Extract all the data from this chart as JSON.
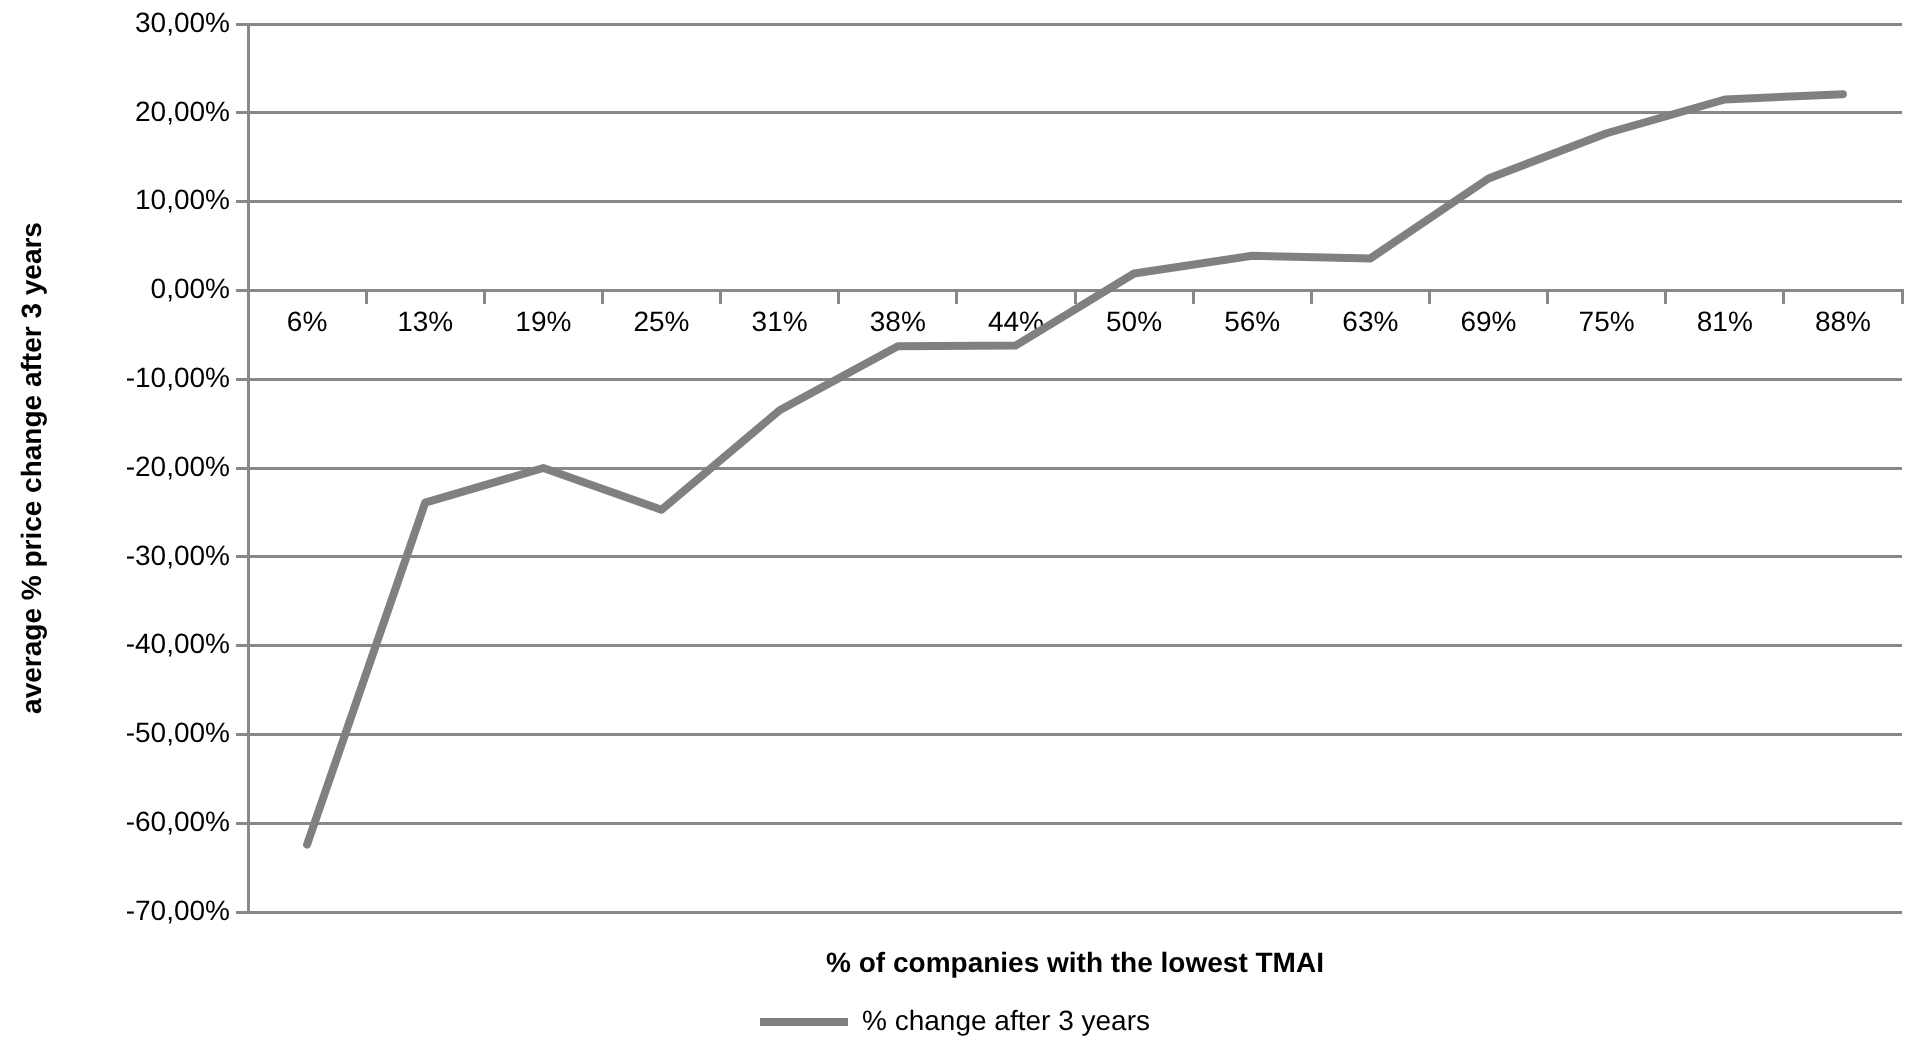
{
  "chart_data": {
    "type": "line",
    "xlabel": "% of companies with the lowest TMAI",
    "ylabel": "average % price change after 3 years",
    "categories": [
      "6%",
      "13%",
      "19%",
      "25%",
      "31%",
      "38%",
      "44%",
      "50%",
      "56%",
      "63%",
      "69%",
      "75%",
      "81%",
      "88%"
    ],
    "series": [
      {
        "name": "% change after 3 years",
        "color": "#808080",
        "values": [
          -62.4,
          -23.9,
          -20,
          -24.7,
          -13.5,
          -6.3,
          -6.2,
          1.9,
          3.9,
          3.6,
          12.6,
          17.7,
          21.5,
          22.1
        ]
      }
    ],
    "ylim": [
      -70,
      30
    ],
    "yticks": [
      {
        "value": -70,
        "label": "-70,00%"
      },
      {
        "value": -60,
        "label": "-60,00%"
      },
      {
        "value": -50,
        "label": "-50,00%"
      },
      {
        "value": -40,
        "label": "-40,00%"
      },
      {
        "value": -30,
        "label": "-30,00%"
      },
      {
        "value": -20,
        "label": "-20,00%"
      },
      {
        "value": -10,
        "label": "-10,00%"
      },
      {
        "value": 0,
        "label": "0,00%"
      },
      {
        "value": 10,
        "label": "10,00%"
      },
      {
        "value": 20,
        "label": "20,00%"
      },
      {
        "value": 30,
        "label": "30,00%"
      }
    ],
    "grid": "y",
    "legend": "bottom",
    "marker": "none",
    "line_style": "solid"
  }
}
